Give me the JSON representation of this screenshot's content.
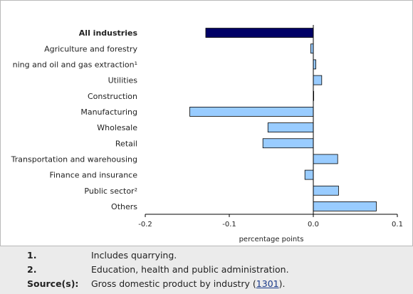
{
  "chart_data": {
    "type": "bar",
    "orientation": "horizontal",
    "categories": [
      "All industries",
      "Agriculture and forestry",
      "ning and oil and gas extraction¹",
      "Utilities",
      "Construction",
      "Manufacturing",
      "Wholesale",
      "Retail",
      "Transportation and warehousing",
      "Finance and insurance",
      "Public sector²",
      "Others"
    ],
    "values": [
      -0.128,
      -0.003,
      0.003,
      0.01,
      0.0,
      -0.147,
      -0.054,
      -0.06,
      0.029,
      -0.01,
      0.03,
      0.075
    ],
    "highlight_index": 0,
    "xlabel": "percentage points",
    "xlim": [
      -0.2,
      0.1
    ],
    "xticks": [
      -0.2,
      -0.1,
      0.0,
      0.1
    ],
    "xtick_labels": [
      "-0.2",
      "-0.1",
      "0.0",
      "0.1"
    ],
    "grid": false,
    "colors": {
      "highlight": "#000066",
      "bar": "#99ccff",
      "bar_border": "#000000"
    }
  },
  "notes": [
    {
      "key": "1.",
      "text": "Includes quarrying."
    },
    {
      "key": "2.",
      "text": "Education, health and public administration."
    },
    {
      "key": "Source(s):",
      "text_before": "Gross domestic product by industry (",
      "link": "1301",
      "text_after": ")."
    }
  ]
}
